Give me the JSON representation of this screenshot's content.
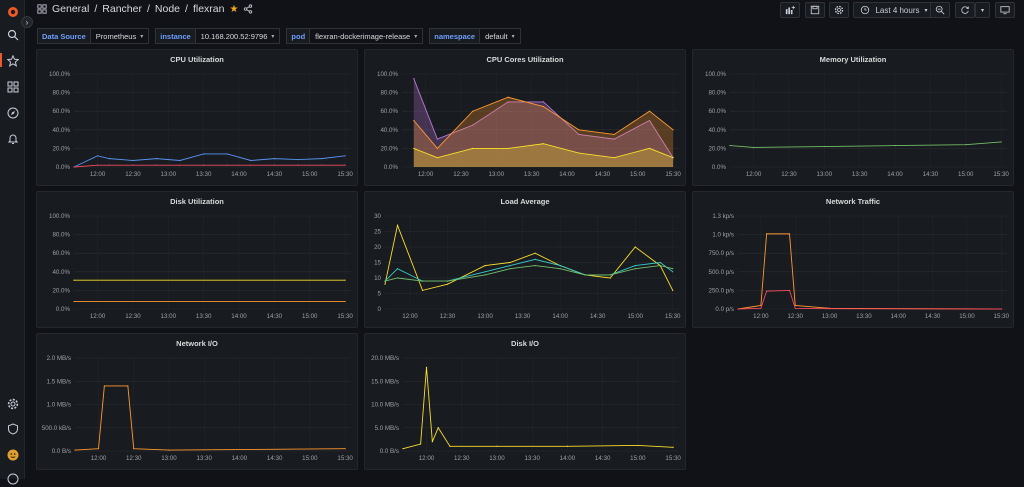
{
  "breadcrumb": {
    "parts": [
      "General",
      "Rancher",
      "Node",
      "flexran"
    ],
    "separator": "/"
  },
  "toolbar": {
    "time_range": "Last 4 hours"
  },
  "variables": [
    {
      "label": "Data Source",
      "value": "Prometheus"
    },
    {
      "label": "instance",
      "value": "10.168.200.52:9796"
    },
    {
      "label": "pod",
      "value": "flexran-dockerimage-release"
    },
    {
      "label": "namespace",
      "value": "default"
    }
  ],
  "colors": {
    "green": "#73bf69",
    "yellow": "#fade2a",
    "blue": "#5794f2",
    "orange": "#ff9830",
    "red": "#f2495c",
    "purple": "#b877d9",
    "teal": "#8ab8ff",
    "cyan": "#37c9c9"
  },
  "time_ticks": [
    "12:00",
    "12:30",
    "13:00",
    "13:30",
    "14:00",
    "14:30",
    "15:00",
    "15:30"
  ],
  "panels": {
    "cpu": {
      "title": "CPU Utilization",
      "yticks": [
        "100.0%",
        "80.0%",
        "60.0%",
        "40.0%",
        "20.0%",
        "0.0%"
      ]
    },
    "cores": {
      "title": "CPU Cores Utilization",
      "yticks": [
        "100.0%",
        "80.0%",
        "60.0%",
        "40.0%",
        "20.0%",
        "0.0%"
      ]
    },
    "mem": {
      "title": "Memory Utilization",
      "yticks": [
        "100.0%",
        "80.0%",
        "60.0%",
        "40.0%",
        "20.0%",
        "0.0%"
      ]
    },
    "disk": {
      "title": "Disk Utilization",
      "yticks": [
        "100.0%",
        "80.0%",
        "60.0%",
        "40.0%",
        "20.0%",
        "0.0%"
      ]
    },
    "load": {
      "title": "Load Average",
      "yticks": [
        "30",
        "25",
        "20",
        "15",
        "10",
        "5",
        "0"
      ]
    },
    "net": {
      "title": "Network Traffic",
      "yticks": [
        "1.3 kp/s",
        "1.0 kp/s",
        "750.0 p/s",
        "500.0 p/s",
        "250.0 p/s",
        "0.0 p/s"
      ]
    },
    "netio": {
      "title": "Network I/O",
      "yticks": [
        "2.0 MB/s",
        "1.5 MB/s",
        "1.0 MB/s",
        "500.0 kB/s",
        "0.0 B/s"
      ]
    },
    "diskio": {
      "title": "Disk I/O",
      "yticks": [
        "20.0 MB/s",
        "15.0 MB/s",
        "10.0 MB/s",
        "5.0 MB/s",
        "0.0 B/s"
      ]
    }
  },
  "chart_data": [
    {
      "type": "line",
      "title": "CPU Utilization",
      "x": [
        "11:40",
        "12:00",
        "12:10",
        "12:30",
        "12:50",
        "13:10",
        "13:30",
        "13:50",
        "14:10",
        "14:30",
        "14:50",
        "15:10",
        "15:30"
      ],
      "ylim": [
        0,
        100
      ],
      "series": [
        {
          "values": [
            0,
            12,
            9,
            7,
            9,
            7,
            14,
            14,
            7,
            9,
            8,
            9,
            12
          ]
        },
        {
          "values": [
            0,
            2,
            2,
            2,
            2,
            2,
            2,
            2,
            2,
            2,
            2,
            2,
            2
          ]
        }
      ]
    },
    {
      "type": "line",
      "title": "CPU Cores Utilization",
      "x": [
        "11:50",
        "12:10",
        "12:40",
        "13:10",
        "13:40",
        "14:10",
        "14:40",
        "15:10",
        "15:30"
      ],
      "ylim": [
        0,
        100
      ],
      "series": [
        {
          "values": [
            95,
            30,
            45,
            70,
            70,
            35,
            30,
            50,
            10
          ]
        },
        {
          "values": [
            50,
            20,
            60,
            75,
            65,
            40,
            35,
            60,
            40
          ]
        },
        {
          "values": [
            20,
            10,
            20,
            20,
            25,
            15,
            10,
            20,
            10
          ]
        }
      ]
    },
    {
      "type": "line",
      "title": "Memory Utilization",
      "x": [
        "11:40",
        "12:00",
        "13:00",
        "14:00",
        "15:00",
        "15:30"
      ],
      "ylim": [
        0,
        100
      ],
      "series": [
        {
          "values": [
            23,
            21,
            22,
            23,
            24,
            27
          ]
        }
      ]
    },
    {
      "type": "line",
      "title": "Disk Utilization",
      "x": [
        "11:40",
        "15:30"
      ],
      "ylim": [
        0,
        100
      ],
      "series": [
        {
          "values": [
            31,
            31
          ]
        },
        {
          "values": [
            8,
            8
          ]
        }
      ]
    },
    {
      "type": "line",
      "title": "Load Average",
      "x": [
        "11:40",
        "11:50",
        "12:10",
        "12:30",
        "13:00",
        "13:20",
        "13:40",
        "14:00",
        "14:20",
        "14:40",
        "15:00",
        "15:20",
        "15:30"
      ],
      "ylim": [
        0,
        30
      ],
      "series": [
        {
          "values": [
            8,
            27,
            6,
            8,
            14,
            15,
            18,
            14,
            11,
            10,
            20,
            14,
            6
          ]
        },
        {
          "values": [
            9,
            13,
            9,
            9,
            12,
            14,
            16,
            14,
            11,
            11,
            14,
            15,
            12
          ]
        },
        {
          "values": [
            9,
            10,
            9,
            9,
            11,
            13,
            14,
            13,
            11,
            11,
            13,
            14,
            13
          ]
        }
      ]
    },
    {
      "type": "line",
      "title": "Network Traffic",
      "x": [
        "11:40",
        "12:00",
        "12:05",
        "12:25",
        "12:30",
        "13:00",
        "15:30"
      ],
      "ylim": [
        0,
        1300
      ],
      "series": [
        {
          "values": [
            0,
            50,
            1050,
            1050,
            50,
            10,
            0
          ]
        },
        {
          "values": [
            0,
            10,
            250,
            260,
            10,
            5,
            0
          ]
        }
      ]
    },
    {
      "type": "line",
      "title": "Network I/O",
      "x": [
        "11:40",
        "12:00",
        "12:05",
        "12:25",
        "12:30",
        "13:00",
        "15:30"
      ],
      "ylim": [
        0,
        2.0
      ],
      "series": [
        {
          "values": [
            0.02,
            0.05,
            1.4,
            1.4,
            0.05,
            0.02,
            0.05
          ]
        }
      ]
    },
    {
      "type": "line",
      "title": "Disk I/O",
      "x": [
        "11:40",
        "11:55",
        "12:00",
        "12:05",
        "12:10",
        "12:20",
        "13:00",
        "14:00",
        "15:00",
        "15:30"
      ],
      "ylim": [
        0,
        20
      ],
      "series": [
        {
          "values": [
            0.5,
            1.5,
            18,
            2,
            5,
            1,
            1,
            1,
            1.2,
            0.8
          ]
        }
      ]
    }
  ]
}
